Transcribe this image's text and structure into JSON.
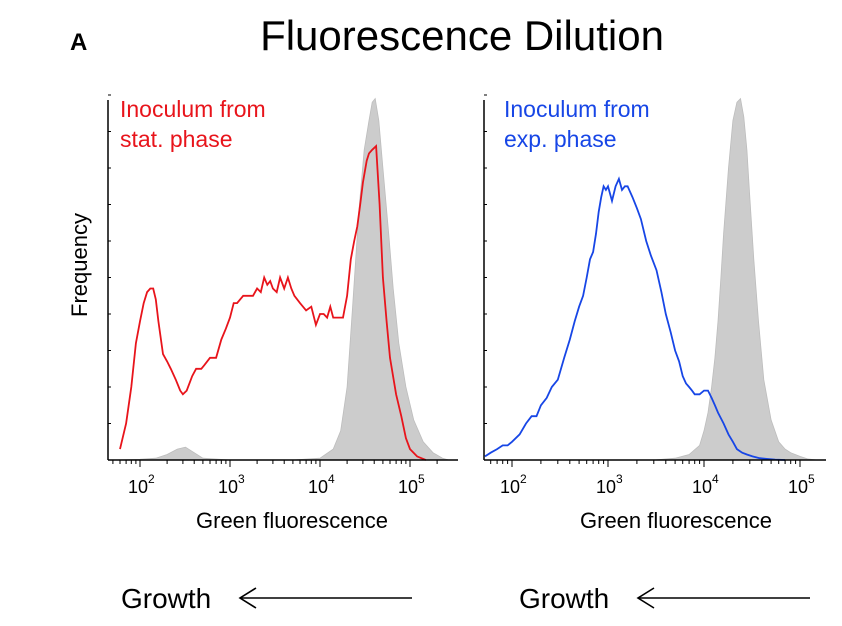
{
  "figure": {
    "panel_letter": "A",
    "title": "Fluorescence Dilution",
    "growth_label": "Growth"
  },
  "colors": {
    "stat_phase": "#e8141b",
    "exp_phase": "#1746e6",
    "reference_fill": "#cccccc",
    "axis": "#000000"
  },
  "icons": [
    "arrow-left-icon"
  ],
  "chart_data": [
    {
      "type": "area",
      "annotation": [
        "Inoculum from",
        "stat. phase"
      ],
      "xlabel": "Green fluorescence",
      "ylabel": "Frequency",
      "xscale": "log",
      "xlim": [
        50,
        270000
      ],
      "ylim": [
        0,
        100
      ],
      "xticks": [
        {
          "base": "10",
          "exp": "2"
        },
        {
          "base": "10",
          "exp": "3"
        },
        {
          "base": "10",
          "exp": "4"
        },
        {
          "base": "10",
          "exp": "5"
        }
      ],
      "grid": false,
      "series": [
        {
          "style": "filled-gray",
          "x": [
            50,
            100,
            150,
            200,
            260,
            320,
            400,
            500,
            1000,
            5000,
            10000,
            14000,
            17000,
            20000,
            23000,
            27000,
            31000,
            35000,
            38000,
            41000,
            45000,
            50000,
            58000,
            65000,
            75000,
            90000,
            110000,
            140000,
            180000,
            230000,
            270000
          ],
          "y": [
            0,
            0.2,
            0.5,
            1.5,
            3,
            3.5,
            2,
            0.5,
            0,
            0,
            0.5,
            3,
            8,
            20,
            42,
            68,
            85,
            93,
            98,
            99,
            93,
            80,
            62,
            47,
            32,
            20,
            11,
            5,
            2,
            0.5,
            0
          ]
        },
        {
          "style": "red-line",
          "x": [
            60,
            70,
            80,
            90,
            100,
            110,
            120,
            130,
            140,
            150,
            160,
            180,
            200,
            220,
            250,
            280,
            300,
            330,
            380,
            420,
            480,
            520,
            600,
            700,
            800,
            900,
            1000,
            1100,
            1200,
            1400,
            1600,
            1800,
            2000,
            2200,
            2400,
            2600,
            2800,
            3000,
            3300,
            3600,
            4000,
            4400,
            4800,
            5200,
            6000,
            7000,
            8000,
            9000,
            10000,
            11000,
            12000,
            13000,
            14000,
            16000,
            18000,
            20000,
            22000,
            24000,
            26000,
            28000,
            30000,
            33000,
            35000,
            38000,
            42000,
            46000,
            50000,
            55000,
            60000,
            70000,
            80000,
            90000,
            100000,
            120000,
            150000
          ],
          "y": [
            3,
            10,
            20,
            32,
            38,
            43,
            46,
            47,
            47,
            44,
            38,
            29,
            27,
            25,
            22,
            19,
            18,
            19,
            23,
            25,
            25,
            26,
            28,
            28,
            33,
            36,
            39,
            43,
            43,
            45,
            45,
            45,
            47,
            46,
            50,
            48,
            49,
            47,
            46,
            50,
            47,
            50,
            47,
            45,
            43,
            41,
            42,
            37,
            40,
            40,
            39,
            42,
            39,
            39,
            39,
            45,
            55,
            60,
            64,
            70,
            76,
            82,
            84,
            85,
            86,
            70,
            50,
            38,
            28,
            18,
            12,
            6,
            3,
            1,
            0
          ]
        }
      ]
    },
    {
      "type": "area",
      "annotation": [
        "Inoculum from",
        "exp. phase"
      ],
      "xlabel": "Green fluorescence",
      "ylabel": "",
      "xscale": "log",
      "xlim": [
        50,
        270000
      ],
      "ylim": [
        0,
        100
      ],
      "xticks": [
        {
          "base": "10",
          "exp": "2"
        },
        {
          "base": "10",
          "exp": "3"
        },
        {
          "base": "10",
          "exp": "4"
        },
        {
          "base": "10",
          "exp": "5"
        }
      ],
      "grid": false,
      "series": [
        {
          "style": "filled-gray",
          "x": [
            3000,
            5000,
            7000,
            9000,
            10000,
            11000,
            12000,
            13000,
            14000,
            15000,
            16000,
            18000,
            20000,
            22000,
            24000,
            26000,
            28000,
            30000,
            33000,
            37000,
            42000,
            50000,
            60000,
            70000,
            80000,
            100000,
            120000,
            150000
          ],
          "y": [
            0,
            0.5,
            1.5,
            4,
            8,
            13,
            20,
            28,
            38,
            50,
            62,
            80,
            93,
            98,
            99,
            94,
            85,
            72,
            55,
            38,
            22,
            11,
            5,
            3,
            2,
            1,
            0.3,
            0
          ]
        },
        {
          "style": "blue-line",
          "x": [
            50,
            60,
            70,
            80,
            90,
            100,
            120,
            140,
            160,
            180,
            200,
            230,
            260,
            300,
            350,
            400,
            450,
            500,
            550,
            600,
            650,
            700,
            750,
            800,
            850,
            900,
            950,
            1000,
            1100,
            1200,
            1300,
            1400,
            1500,
            1600,
            1800,
            2000,
            2200,
            2500,
            2800,
            3200,
            3600,
            4000,
            4500,
            5000,
            5500,
            6000,
            6500,
            7000,
            7500,
            8000,
            9000,
            10000,
            11000,
            12000,
            13000,
            14000,
            16000,
            18000,
            20000,
            22000,
            25000,
            28000,
            32000,
            38000,
            45000,
            55000,
            70000
          ],
          "y": [
            1,
            2,
            3,
            4,
            4,
            5,
            7,
            10,
            12,
            12,
            15,
            17,
            20,
            22,
            28,
            33,
            38,
            42,
            45,
            50,
            55,
            57,
            62,
            68,
            72,
            75,
            74,
            75,
            71,
            75,
            77,
            74,
            75,
            75,
            72,
            69,
            66,
            60,
            56,
            52,
            46,
            40,
            35,
            30,
            27,
            23,
            21,
            20,
            19,
            18,
            18,
            19,
            19,
            17,
            15,
            13,
            10,
            7,
            5,
            3,
            2,
            1.5,
            1,
            0.5,
            0.3,
            0.1,
            0
          ]
        }
      ]
    }
  ]
}
